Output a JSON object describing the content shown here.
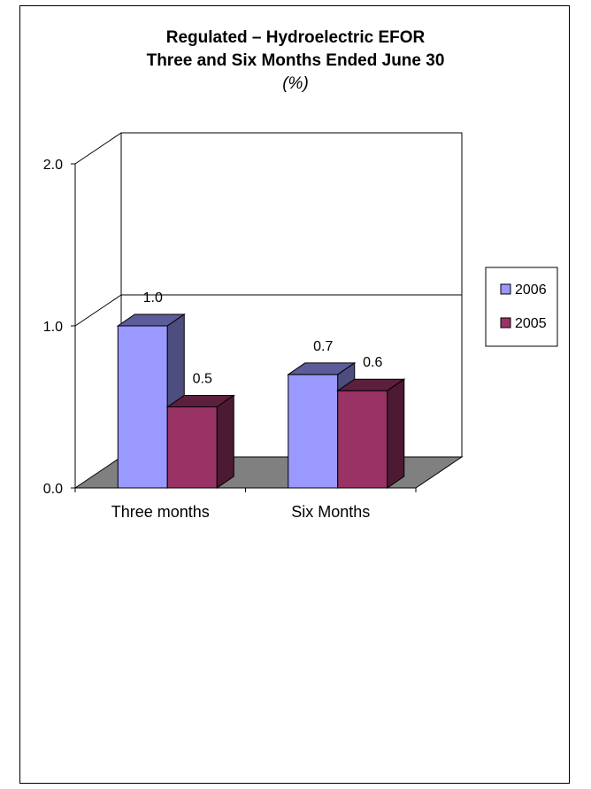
{
  "chart_data": {
    "type": "bar",
    "title": "Regulated  –  Hydroelectric EFOR",
    "subtitle": "Three and Six Months Ended June 30",
    "unit_label": "(%)",
    "categories": [
      "Three months",
      "Six Months"
    ],
    "series": [
      {
        "name": "2006",
        "values": [
          1.0,
          0.7
        ],
        "color": "#9999FF",
        "label_text": [
          "1.0",
          "0.7"
        ]
      },
      {
        "name": "2005",
        "values": [
          0.5,
          0.6
        ],
        "color": "#993366",
        "label_text": [
          "0.5",
          "0.6"
        ]
      }
    ],
    "yticks": [
      "0.0",
      "1.0",
      "2.0"
    ],
    "ylim": [
      0,
      2
    ],
    "grid": true,
    "legend_position": "right",
    "three_d": true,
    "floor_color": "#808080"
  }
}
